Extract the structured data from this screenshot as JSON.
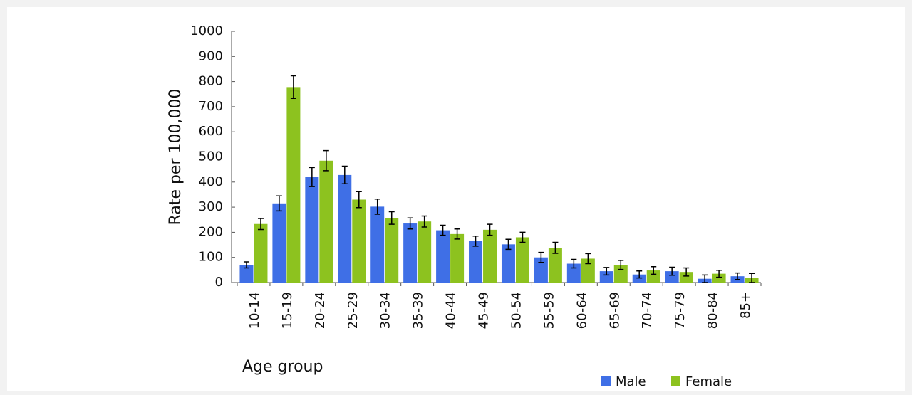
{
  "chart_data": {
    "type": "bar",
    "x_label": "Age group",
    "y_label": "Rate per 100,000",
    "categories": [
      "10-14",
      "15-19",
      "20-24",
      "25-29",
      "30-34",
      "35-39",
      "40-44",
      "45-49",
      "50-54",
      "55-59",
      "60-64",
      "65-69",
      "70-74",
      "75-79",
      "80-84",
      "85+"
    ],
    "series": [
      {
        "name": "Male",
        "color": "#3f6fe6",
        "values": [
          70,
          315,
          420,
          428,
          302,
          235,
          208,
          165,
          152,
          100,
          75,
          45,
          32,
          45,
          15,
          25
        ],
        "errors": [
          12,
          30,
          38,
          35,
          30,
          22,
          20,
          20,
          20,
          20,
          17,
          15,
          14,
          16,
          15,
          13
        ]
      },
      {
        "name": "Female",
        "color": "#8dc21f",
        "values": [
          233,
          778,
          485,
          330,
          257,
          243,
          193,
          210,
          180,
          138,
          95,
          70,
          48,
          42,
          35,
          18
        ],
        "errors": [
          22,
          45,
          40,
          32,
          25,
          22,
          20,
          22,
          20,
          22,
          20,
          18,
          15,
          16,
          14,
          18
        ]
      }
    ],
    "ylim": [
      0,
      1000
    ],
    "yticks": [
      0,
      100,
      200,
      300,
      400,
      500,
      600,
      700,
      800,
      900,
      1000
    ],
    "legend": "bottom-right"
  }
}
